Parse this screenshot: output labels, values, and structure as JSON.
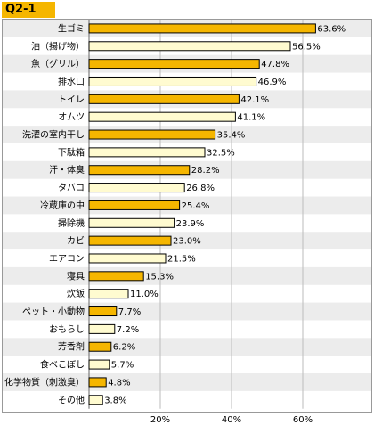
{
  "header": {
    "question_label": "Q2-1"
  },
  "colors": {
    "highlight_bar": "#f5b600",
    "plain_bar": "#fffbd0",
    "stripe": "#ececec",
    "header_bg": "#f5b600"
  },
  "chart_data": {
    "type": "bar",
    "orientation": "horizontal",
    "categories": [
      "生ゴミ",
      "油（揚げ物）",
      "魚（グリル）",
      "排水口",
      "トイレ",
      "オムツ",
      "洗濯の室内干し",
      "下駄箱",
      "汗・体臭",
      "タバコ",
      "冷蔵庫の中",
      "掃除機",
      "カビ",
      "エアコン",
      "寝具",
      "炊飯",
      "ペット・小動物",
      "おもらし",
      "芳香剤",
      "食べこぼし",
      "化学物質（刺激臭）",
      "その他"
    ],
    "values": [
      63.6,
      56.5,
      47.8,
      46.9,
      42.1,
      41.1,
      35.4,
      32.5,
      28.2,
      26.8,
      25.4,
      23.9,
      23.0,
      21.5,
      15.3,
      11.0,
      7.7,
      7.2,
      6.2,
      5.7,
      4.8,
      3.8
    ],
    "value_labels": [
      "63.6%",
      "56.5%",
      "47.8%",
      "46.9%",
      "42.1%",
      "41.1%",
      "35.4%",
      "32.5%",
      "28.2%",
      "26.8%",
      "25.4%",
      "23.9%",
      "23.0%",
      "21.5%",
      "15.3%",
      "11.0%",
      "7.7%",
      "7.2%",
      "6.2%",
      "5.7%",
      "4.8%",
      "3.8%"
    ],
    "highlighted": [
      true,
      false,
      true,
      false,
      true,
      false,
      true,
      false,
      true,
      false,
      true,
      false,
      true,
      false,
      true,
      false,
      true,
      false,
      true,
      false,
      true,
      false
    ],
    "xlim": [
      0,
      75
    ],
    "x_ticks": [
      20,
      40,
      60
    ],
    "x_tick_labels": [
      "20%",
      "40%",
      "60%"
    ],
    "grid": true
  }
}
